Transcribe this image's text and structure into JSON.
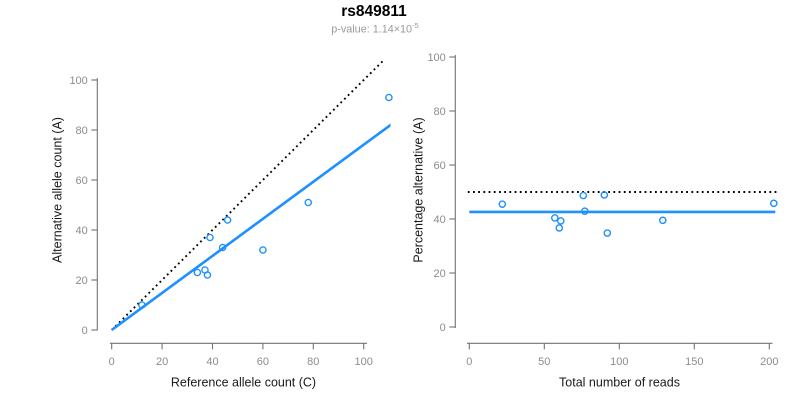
{
  "figure": {
    "title": "rs849811",
    "subtitle": {
      "text": "p-value: 1.14×10",
      "exponent": "-5"
    }
  },
  "colors": {
    "accent_blue": "#1E90FF",
    "dotted_line": "#000000",
    "axis": "#737373",
    "tick_label": "#8c8c8c",
    "axis_label": "#1a1a1a",
    "subtitle": "#9a9a9a"
  },
  "chart_data": [
    {
      "type": "scatter",
      "panel": "left",
      "xlabel": "Reference allele count (C)",
      "ylabel": "Alternative allele count (A)",
      "xticks": [
        0,
        20,
        40,
        60,
        80,
        100
      ],
      "yticks": [
        0,
        20,
        40,
        60,
        80,
        100
      ],
      "xlim": [
        0,
        110
      ],
      "ylim": [
        0,
        107
      ],
      "grid": false,
      "points": [
        [
          110,
          93
        ],
        [
          78,
          51
        ],
        [
          46,
          44
        ],
        [
          39,
          37
        ],
        [
          44,
          33
        ],
        [
          60,
          32
        ],
        [
          34,
          23
        ],
        [
          37,
          24
        ],
        [
          38,
          22
        ],
        [
          12,
          10
        ]
      ],
      "lines": [
        {
          "name": "identity-line",
          "style": "dotted",
          "color": "#000000",
          "slope": 1,
          "intercept": 0,
          "x_range": [
            0,
            113
          ]
        },
        {
          "name": "fit-line",
          "style": "solid",
          "color": "#1E90FF",
          "slope": 0.741,
          "intercept": 0,
          "x_range": [
            0,
            111
          ]
        }
      ]
    },
    {
      "type": "scatter",
      "panel": "right",
      "xlabel": "Total number of reads",
      "ylabel": "Percentage alternative (A)",
      "xticks": [
        0,
        50,
        100,
        150,
        200
      ],
      "yticks": [
        0,
        20,
        40,
        60,
        80,
        100
      ],
      "xlim": [
        0,
        207
      ],
      "ylim": [
        0,
        100
      ],
      "grid": false,
      "points": [
        [
          22,
          45.5
        ],
        [
          57,
          40.4
        ],
        [
          60,
          36.7
        ],
        [
          61,
          39.3
        ],
        [
          76,
          48.7
        ],
        [
          77,
          42.9
        ],
        [
          90,
          48.9
        ],
        [
          92,
          34.8
        ],
        [
          129,
          39.5
        ],
        [
          203,
          45.8
        ]
      ],
      "lines": [
        {
          "name": "expected-50-line",
          "style": "dotted",
          "color": "#000000",
          "y": 50,
          "x_range": [
            -1,
            207
          ]
        },
        {
          "name": "mean-percentage-line",
          "style": "solid",
          "color": "#1E90FF",
          "y": 42.6,
          "x_range": [
            0,
            204
          ]
        }
      ]
    }
  ]
}
